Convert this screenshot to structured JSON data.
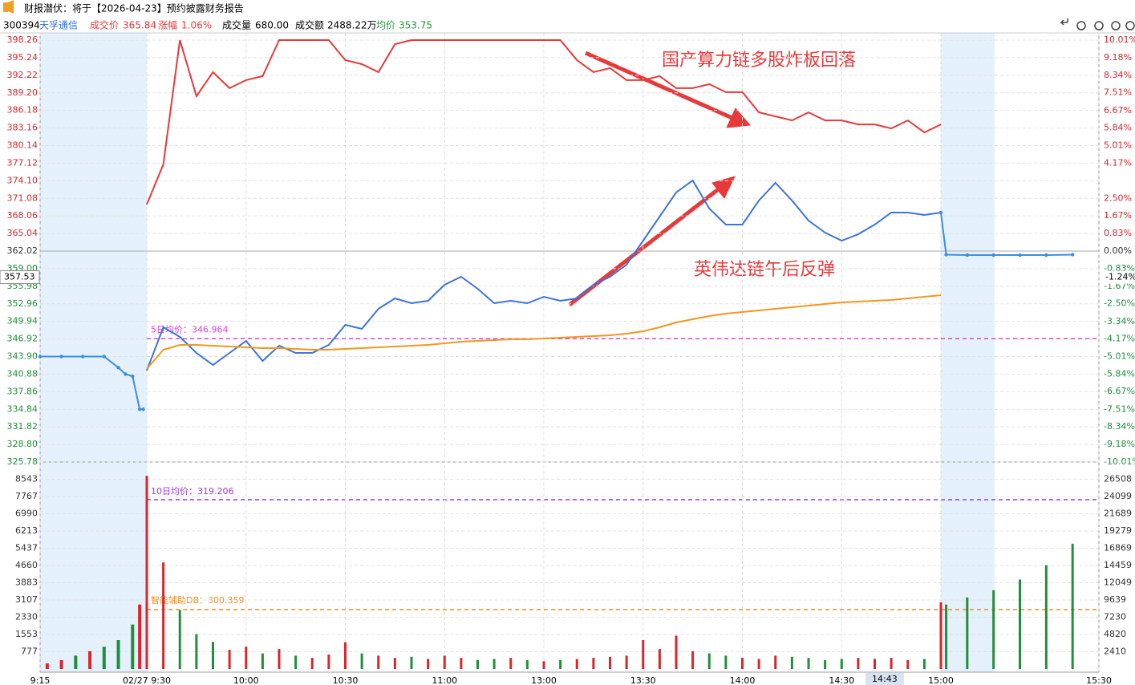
{
  "header": {
    "title": "财报潜伏：将于【2026-04-23】预约披露财务报告",
    "code": "300394",
    "name": "天孚通信",
    "price_label": "成交价",
    "price": "365.84",
    "change_label": "涨幅",
    "change": "1.06%",
    "volume_label": "成交量",
    "volume": "680.00",
    "amount_label": "成交额",
    "amount": "2488.22万",
    "avg_label": "均价",
    "avg": "353.75"
  },
  "chart_data": [
    {
      "type": "line",
      "x": [
        0,
        5,
        10,
        15,
        20,
        25,
        30,
        35,
        40,
        45,
        50,
        55,
        60,
        65,
        70,
        75,
        80,
        85,
        90,
        95,
        100,
        105,
        110,
        115,
        120,
        125,
        130,
        135,
        140,
        145,
        150,
        155,
        160,
        165,
        170,
        175,
        180,
        185,
        190,
        195,
        200,
        205,
        210,
        215,
        220,
        225,
        230,
        235,
        240
      ],
      "series": [
        {
          "color": "#3b73e0",
          "values": [
            341.49,
            348.93,
            347.28,
            344.52,
            342.46,
            344.52,
            346.59,
            343.14,
            345.78,
            344.52,
            344.52,
            345.9,
            349.34,
            348.65,
            352.1,
            353.89,
            353.06,
            353.48,
            356.23,
            357.61,
            355.55,
            353.06,
            353.48,
            353.06,
            354.17,
            353.48,
            353.89,
            356.23,
            357.61,
            359.68,
            363.81,
            367.95,
            372.08,
            374.15,
            369.32,
            366.57,
            366.57,
            370.7,
            373.73,
            370.7,
            367.26,
            365.19,
            363.81,
            364.92,
            366.57,
            368.64,
            368.64,
            368.22,
            368.64
          ]
        },
        {
          "color": "#f5961e",
          "values": [
            341.77,
            345.07,
            345.9,
            345.9,
            345.76,
            345.62,
            345.49,
            345.35,
            345.35,
            345.21,
            345.07,
            345.07,
            345.21,
            345.35,
            345.49,
            345.62,
            345.76,
            345.9,
            346.17,
            346.45,
            346.59,
            346.73,
            346.86,
            346.86,
            347.0,
            347.14,
            347.28,
            347.42,
            347.55,
            347.83,
            348.24,
            348.93,
            349.76,
            350.31,
            350.86,
            351.27,
            351.55,
            351.82,
            352.1,
            352.38,
            352.65,
            352.93,
            353.2,
            353.34,
            353.48,
            353.62,
            353.89,
            354.17,
            354.44
          ]
        },
        {
          "color": "#e8393a",
          "axis": "y2",
          "values": [
            2.21,
            4.11,
            10.01,
            7.35,
            8.49,
            7.73,
            8.11,
            8.3,
            10.01,
            10.01,
            10.01,
            10.01,
            9.06,
            8.87,
            8.49,
            9.82,
            10.01,
            10.01,
            10.01,
            10.01,
            10.01,
            10.01,
            10.01,
            10.01,
            10.01,
            10.01,
            9.06,
            8.49,
            8.68,
            8.11,
            8.11,
            8.3,
            7.73,
            7.73,
            7.92,
            7.54,
            7.54,
            6.58,
            6.39,
            6.2,
            6.58,
            6.2,
            6.2,
            6.01,
            6.01,
            5.82,
            6.2,
            5.63,
            6.01
          ]
        },
        {
          "color": "#3b8fe0",
          "markers": true,
          "x": [
            -15,
            -12,
            -9,
            -6,
            -4,
            -3,
            -2,
            -1,
            -0.5
          ],
          "values": [
            343.9,
            343.9,
            343.9,
            343.9,
            342.0,
            340.88,
            340.5,
            334.84,
            334.84
          ]
        },
        {
          "color": "#3b8fe0",
          "markers": true,
          "x": [
            240,
            241,
            245,
            250,
            255,
            260,
            265
          ],
          "values": [
            368.64,
            361.4,
            361.33,
            361.33,
            361.33,
            361.33,
            361.4
          ]
        }
      ],
      "ylim": [
        325.78,
        398.26
      ],
      "yticks": [
        398.26,
        395.24,
        392.22,
        {
          "value": 389.2,
          "label": "389.20"
        },
        386.18,
        383.16,
        380.14,
        377.12,
        {
          "value": 374.1,
          "label": "374.10"
        },
        371.08,
        368.06,
        365.04,
        362.02,
        {
          "value": 359,
          "label": "359.00"
        },
        355.98,
        352.96,
        349.94,
        346.92,
        {
          "value": 343.9,
          "label": "343.90"
        },
        340.88,
        337.86,
        334.84,
        331.82,
        {
          "value": 328.8,
          "label": "328.80"
        },
        325.78
      ],
      "y2lim": [
        -10.01,
        10.01
      ],
      "y2ticks": [
        {
          "value": 10.01,
          "label": "10.01%"
        },
        {
          "value": 9.18,
          "label": "9.18%"
        },
        {
          "value": 8.34,
          "label": "8.34%"
        },
        {
          "value": 7.51,
          "label": "7.51%"
        },
        {
          "value": 6.67,
          "label": "6.67%"
        },
        {
          "value": 5.84,
          "label": "5.84%"
        },
        {
          "value": 5.01,
          "label": "5.01%"
        },
        {
          "value": 4.17,
          "label": "4.17%"
        },
        {
          "value": 2.5,
          "label": "2.50%"
        },
        {
          "value": 1.67,
          "label": "1.67%"
        },
        {
          "value": 0.83,
          "label": "0.83%"
        },
        {
          "value": 0,
          "label": "0.00%"
        },
        {
          "value": -0.83,
          "label": "-0.83%"
        },
        {
          "value": -1.67,
          "label": "-1.67%"
        },
        {
          "value": -2.5,
          "label": "-2.50%"
        },
        {
          "value": -3.34,
          "label": "-3.34%"
        },
        {
          "value": -4.17,
          "label": "-4.17%"
        },
        {
          "value": -5.01,
          "label": "-5.01%"
        },
        {
          "value": -5.84,
          "label": "-5.84%"
        },
        {
          "value": -6.67,
          "label": "-6.67%"
        },
        {
          "value": -7.51,
          "label": "-7.51%"
        },
        {
          "value": -8.34,
          "label": "-8.34%"
        },
        {
          "value": -9.18,
          "label": "-9.18%"
        },
        {
          "value": -10.01,
          "label": "-10.01%"
        }
      ],
      "prev_close": 362.02,
      "reference_line": {
        "label": "5日均价：346.964",
        "value": 346.964,
        "color": "#e040e0"
      },
      "annotations": [
        "国产算力链多股炸板回落",
        "英伟达链午后反弹"
      ],
      "crosshair": {
        "time": {
          "value": 223,
          "label": "14:43"
        },
        "price": 357.53,
        "percent": {
          "value": -1.24,
          "label": "-1.24%"
        }
      },
      "xticks": [
        {
          "value": -15,
          "label": "9:15"
        },
        {
          "value": 0,
          "label": "02/27 9:30"
        },
        {
          "value": 30,
          "label": "10:00"
        },
        {
          "value": 60,
          "label": "10:30"
        },
        {
          "value": 90,
          "label": "11:00"
        },
        {
          "value": 120,
          "label": "13:00"
        },
        {
          "value": 150,
          "label": "13:30"
        },
        {
          "value": 180,
          "label": "14:00"
        },
        {
          "value": 210,
          "label": "14:30"
        },
        {
          "value": 240,
          "label": "15:00"
        },
        {
          "value": 270,
          "label": "15:30"
        }
      ],
      "grid": true
    },
    {
      "type": "bar",
      "x": [
        0,
        5,
        10,
        15,
        20,
        25,
        30,
        35,
        40,
        45,
        50,
        55,
        60,
        65,
        70,
        75,
        80,
        85,
        90,
        95,
        100,
        105,
        110,
        115,
        120,
        125,
        130,
        135,
        140,
        145,
        150,
        155,
        160,
        165,
        170,
        175,
        180,
        185,
        190,
        195,
        200,
        205,
        210,
        215,
        220,
        225,
        230,
        235,
        240
      ],
      "values": [
        8700,
        4800,
        2650,
        1570,
        1220,
        860,
        1000,
        700,
        900,
        600,
        500,
        650,
        1200,
        700,
        600,
        500,
        550,
        450,
        600,
        500,
        400,
        450,
        500,
        400,
        350,
        400,
        450,
        500,
        550,
        600,
        1300,
        900,
        1500,
        800,
        700,
        600,
        500,
        450,
        600,
        550,
        500,
        400,
        450,
        500,
        450,
        500,
        400,
        450,
        3000
      ],
      "up_color": "#d9262b",
      "down_color": "#1e8f3a",
      "pre": {
        "x": [
          -14,
          -12,
          -10,
          -8,
          -6,
          -4,
          -2,
          -1
        ],
        "values": [
          250,
          400,
          600,
          800,
          1000,
          1300,
          2000,
          2900
        ],
        "colors": [
          "#d9262b",
          "#d9262b",
          "#1e8f3a",
          "#d9262b",
          "#1e8f3a",
          "#1e8f3a",
          "#1e8f3a",
          "#d9262b"
        ]
      },
      "post": {
        "x": [
          241,
          245,
          250,
          255,
          260,
          265
        ],
        "values": [
          9000,
          10000,
          11000,
          12500,
          14500,
          17500
        ],
        "color": "#1e8f3a",
        "axis": "y2"
      },
      "ylim": [
        0,
        9320
      ],
      "yticks": [
        8543,
        7767,
        6990,
        6213,
        5437,
        4660,
        3883,
        3107,
        2330,
        1553,
        777
      ],
      "y2lim": [
        0,
        28920
      ],
      "y2ticks": [
        26508,
        24099,
        21689,
        19279,
        16869,
        14459,
        12049,
        9639,
        7230,
        4820,
        2410
      ],
      "reference_labels": [
        "10日均价：319.206",
        "智能辅助DB：300.359"
      ]
    }
  ]
}
